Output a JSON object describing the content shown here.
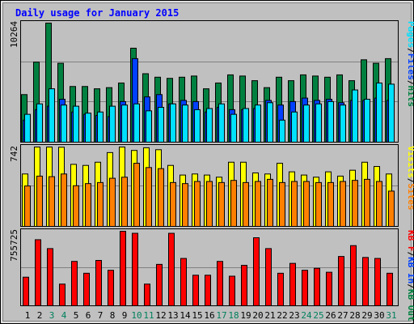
{
  "colors": {
    "background": "#C0C0C0",
    "title": "#0000FF",
    "hits": "#008040",
    "files": "#0040FF",
    "pages": "#00E0FF",
    "visits": "#FFFF00",
    "sites": "#FF8000",
    "kbytes": "#FF0000",
    "weekend_day_label": "#00805C",
    "weekday_label": "#000000",
    "gridline": "#808080",
    "bar_outline": "#000000"
  },
  "chart_data": [
    {
      "type": "bar",
      "title": "Daily usage for January 2015",
      "panel": "hits-files-pages",
      "ylabel_parts": [
        "Pages",
        "/",
        "Files",
        "/",
        "Hits"
      ],
      "ytick_label": "10264",
      "ylim": [
        0,
        10264
      ],
      "x": [
        "1",
        "2",
        "3",
        "4",
        "5",
        "6",
        "7",
        "8",
        "9",
        "10",
        "11",
        "12",
        "13",
        "14",
        "15",
        "16",
        "17",
        "18",
        "19",
        "20",
        "21",
        "22",
        "23",
        "24",
        "25",
        "26",
        "27",
        "28",
        "29",
        "30",
        "31"
      ],
      "weekend_days": [
        "3",
        "4",
        "10",
        "11",
        "17",
        "18",
        "24",
        "25",
        "31"
      ],
      "series": [
        {
          "name": "Hits",
          "values": [
            4100,
            6900,
            10264,
            6800,
            4800,
            4800,
            4600,
            4700,
            5100,
            8100,
            5900,
            5600,
            5500,
            5600,
            5700,
            4600,
            5100,
            5800,
            5700,
            5300,
            4700,
            5600,
            5300,
            5800,
            5700,
            5600,
            5800,
            5300,
            7100,
            6800,
            7200
          ]
        },
        {
          "name": "Files",
          "values": [
            1900,
            2800,
            3100,
            3700,
            2600,
            2400,
            2300,
            2200,
            3500,
            7200,
            3900,
            4100,
            3300,
            3600,
            3500,
            2600,
            3000,
            2800,
            2800,
            2900,
            3600,
            3200,
            3500,
            3800,
            3600,
            3700,
            3400,
            3600,
            3600,
            3800,
            3600
          ]
        },
        {
          "name": "Pages",
          "values": [
            2400,
            3300,
            4600,
            3200,
            3100,
            2500,
            2600,
            3100,
            3200,
            3300,
            2700,
            3000,
            3300,
            3200,
            2800,
            2900,
            3300,
            2400,
            2900,
            3200,
            3400,
            1900,
            2600,
            3200,
            3300,
            3500,
            3200,
            4500,
            3700,
            5100,
            5000
          ]
        }
      ]
    },
    {
      "type": "bar",
      "panel": "visits-sites",
      "ylabel_parts": [
        "Visits",
        "/",
        "Sites"
      ],
      "ytick_label": "742",
      "ylim": [
        0,
        742
      ],
      "x": [
        "1",
        "2",
        "3",
        "4",
        "5",
        "6",
        "7",
        "8",
        "9",
        "10",
        "11",
        "12",
        "13",
        "14",
        "15",
        "16",
        "17",
        "18",
        "19",
        "20",
        "21",
        "22",
        "23",
        "24",
        "25",
        "26",
        "27",
        "28",
        "29",
        "30",
        "31"
      ],
      "series": [
        {
          "name": "Visits",
          "values": [
            490,
            742,
            742,
            740,
            580,
            570,
            600,
            690,
            742,
            710,
            735,
            717,
            570,
            480,
            490,
            480,
            460,
            600,
            600,
            500,
            490,
            590,
            510,
            480,
            460,
            510,
            470,
            525,
            600,
            560,
            490
          ]
        },
        {
          "name": "Sites",
          "values": [
            378,
            470,
            465,
            490,
            380,
            400,
            410,
            450,
            460,
            590,
            550,
            540,
            410,
            400,
            420,
            420,
            410,
            430,
            410,
            420,
            440,
            410,
            420,
            420,
            410,
            410,
            420,
            430,
            440,
            420,
            330
          ]
        }
      ]
    },
    {
      "type": "bar",
      "panel": "kbytes",
      "ylabel_parts": [
        "KB F",
        "/",
        "KB In",
        "/",
        "KB Out"
      ],
      "ytick_label": "755725",
      "ylim": [
        0,
        755725
      ],
      "x": [
        "1",
        "2",
        "3",
        "4",
        "5",
        "6",
        "7",
        "8",
        "9",
        "10",
        "11",
        "12",
        "13",
        "14",
        "15",
        "16",
        "17",
        "18",
        "19",
        "20",
        "21",
        "22",
        "23",
        "24",
        "25",
        "26",
        "27",
        "28",
        "29",
        "30",
        "31"
      ],
      "series": [
        {
          "name": "KB F",
          "values": [
            290000,
            670000,
            580000,
            220000,
            450000,
            330000,
            460000,
            360000,
            755725,
            735000,
            220000,
            420000,
            735000,
            480000,
            310000,
            310000,
            450000,
            300000,
            410000,
            690000,
            580000,
            330000,
            430000,
            360000,
            380000,
            340000,
            500000,
            610000,
            490000,
            480000,
            330000
          ]
        }
      ]
    }
  ]
}
